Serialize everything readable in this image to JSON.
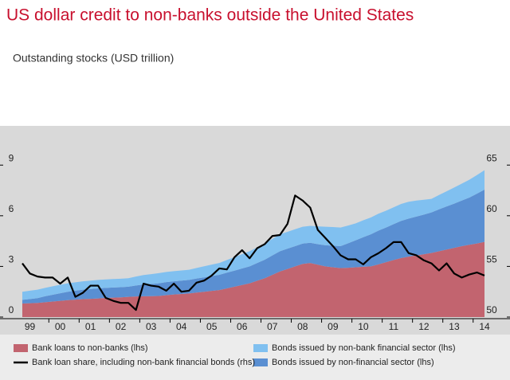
{
  "chart_data": {
    "type": "stacked-area-line",
    "title": "US dollar credit to non-banks outside the United States",
    "subtitle": "Outstanding stocks (USD trillion)",
    "categories": [
      null,
      "99",
      null,
      null,
      null,
      "00",
      null,
      null,
      null,
      "01",
      null,
      null,
      null,
      "02",
      null,
      null,
      null,
      "03",
      null,
      null,
      null,
      "04",
      null,
      null,
      null,
      "05",
      null,
      null,
      null,
      "06",
      null,
      null,
      null,
      "07",
      null,
      null,
      null,
      "08",
      null,
      null,
      null,
      "09",
      null,
      null,
      null,
      "10",
      null,
      null,
      null,
      "11",
      null,
      null,
      null,
      "12",
      null,
      null,
      null,
      "13",
      null,
      null,
      null,
      "14"
    ],
    "series": [
      {
        "name": "Bank loans to non-banks (lhs)",
        "color": "#c2646f",
        "kind": "area",
        "values": [
          0.8,
          0.82,
          0.84,
          0.88,
          0.92,
          0.96,
          1.0,
          1.03,
          1.06,
          1.08,
          1.1,
          1.13,
          1.15,
          1.17,
          1.2,
          1.22,
          1.23,
          1.24,
          1.25,
          1.3,
          1.34,
          1.37,
          1.4,
          1.45,
          1.5,
          1.55,
          1.6,
          1.7,
          1.8,
          1.9,
          2.0,
          2.15,
          2.3,
          2.5,
          2.7,
          2.85,
          3.0,
          3.15,
          3.2,
          3.1,
          3.0,
          2.95,
          2.9,
          2.92,
          2.95,
          2.98,
          3.0,
          3.12,
          3.25,
          3.38,
          3.5,
          3.58,
          3.65,
          3.72,
          3.8,
          3.9,
          4.0,
          4.1,
          4.2,
          4.28,
          4.36,
          4.45
        ]
      },
      {
        "name": "Bonds issued by non-financial sector (lhs)",
        "color": "#5a8fd2",
        "kind": "area",
        "values": [
          0.22,
          0.25,
          0.28,
          0.35,
          0.4,
          0.45,
          0.5,
          0.53,
          0.56,
          0.58,
          0.6,
          0.6,
          0.6,
          0.6,
          0.6,
          0.65,
          0.7,
          0.72,
          0.75,
          0.77,
          0.78,
          0.79,
          0.8,
          0.83,
          0.85,
          0.88,
          0.9,
          0.93,
          0.95,
          0.98,
          1.0,
          1.05,
          1.1,
          1.15,
          1.2,
          1.2,
          1.2,
          1.2,
          1.2,
          1.22,
          1.25,
          1.28,
          1.3,
          1.45,
          1.6,
          1.75,
          1.9,
          2.0,
          2.05,
          2.12,
          2.2,
          2.25,
          2.3,
          2.35,
          2.4,
          2.48,
          2.55,
          2.62,
          2.7,
          2.8,
          2.95,
          3.1
        ]
      },
      {
        "name": "Bonds issued by non-bank financial sector (lhs)",
        "color": "#80c0f0",
        "kind": "area",
        "values": [
          0.48,
          0.49,
          0.5,
          0.5,
          0.5,
          0.5,
          0.5,
          0.5,
          0.5,
          0.5,
          0.5,
          0.5,
          0.5,
          0.5,
          0.5,
          0.53,
          0.56,
          0.58,
          0.6,
          0.6,
          0.6,
          0.6,
          0.6,
          0.63,
          0.66,
          0.68,
          0.7,
          0.75,
          0.8,
          0.85,
          0.9,
          0.93,
          0.96,
          0.98,
          1.0,
          1.0,
          1.0,
          1.0,
          1.0,
          1.05,
          1.1,
          1.1,
          1.1,
          1.05,
          1.0,
          1.0,
          1.0,
          1.0,
          1.0,
          1.0,
          1.0,
          1.0,
          0.95,
          0.88,
          0.8,
          0.85,
          0.9,
          0.95,
          1.0,
          1.05,
          1.1,
          1.15
        ]
      },
      {
        "name": "Bank loan share, including non-bank financial bonds (rhs)",
        "color": "#000000",
        "kind": "line",
        "axis": "y2",
        "values": [
          55.3,
          54.3,
          54.0,
          53.9,
          53.9,
          53.3,
          53.9,
          52.0,
          52.4,
          53.1,
          53.1,
          51.9,
          51.6,
          51.4,
          51.4,
          50.7,
          53.3,
          53.1,
          53.0,
          52.6,
          53.3,
          52.5,
          52.6,
          53.4,
          53.6,
          54.1,
          54.8,
          54.7,
          55.9,
          56.6,
          55.8,
          56.8,
          57.2,
          58.0,
          58.1,
          59.2,
          62.0,
          61.5,
          60.8,
          58.6,
          57.8,
          57.0,
          56.1,
          55.7,
          55.7,
          55.2,
          55.9,
          56.3,
          56.8,
          57.4,
          57.4,
          56.3,
          56.1,
          55.6,
          55.3,
          54.6,
          55.3,
          54.3,
          53.9,
          54.2,
          54.4,
          54.1
        ]
      }
    ],
    "ylim": [
      0,
      11.3
    ],
    "yticks": [
      0,
      3,
      6,
      9
    ],
    "y2lim": [
      50,
      68.83
    ],
    "y2ticks": [
      50,
      55,
      60,
      65
    ],
    "legend": "bottom"
  }
}
